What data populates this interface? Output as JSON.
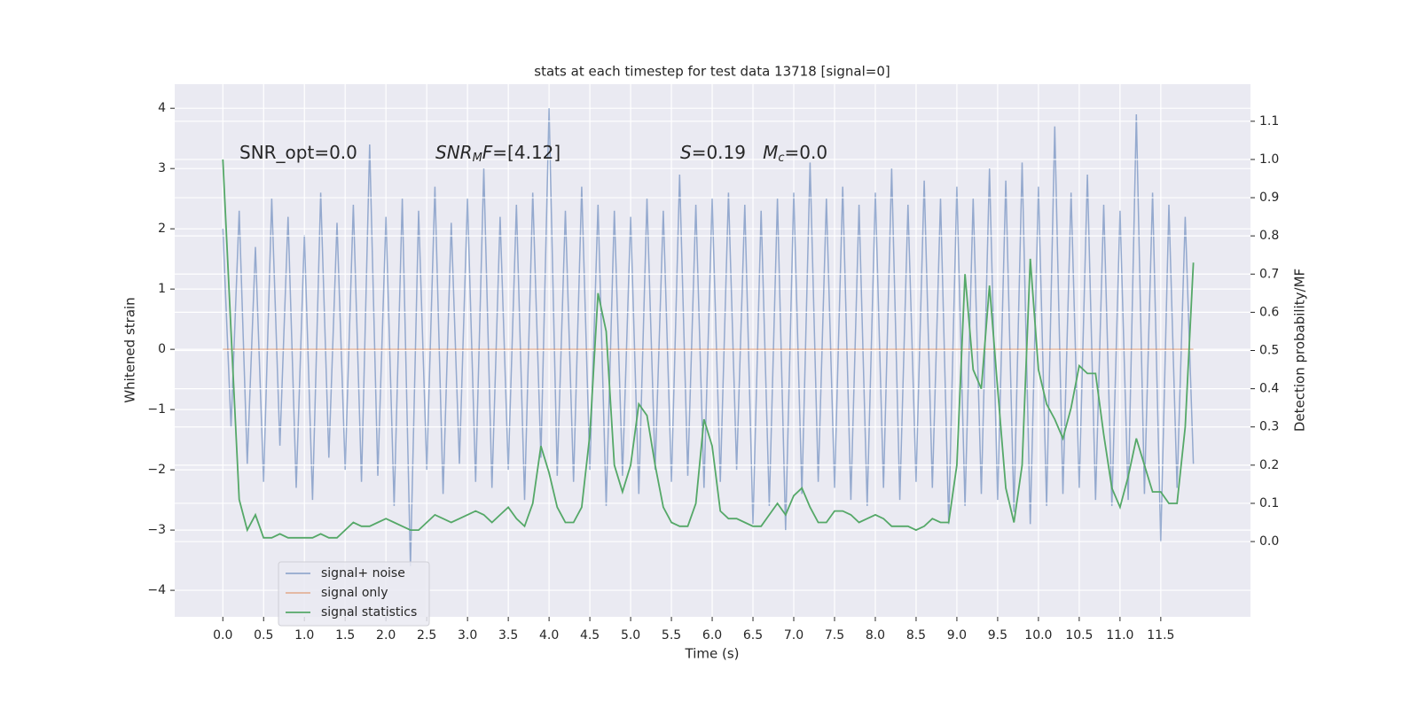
{
  "chart_data": {
    "type": "line",
    "title": "stats at each timestep for test data 13718 [signal=0]",
    "xlabel": "Time (s)",
    "ylabel": "Whitened strain",
    "y2label": "Detection probability/MF",
    "annotations": [
      [
        {
          "t": "SNR_opt=0.0"
        }
      ],
      [
        {
          "t": "SNR",
          "i": true
        },
        {
          "t": "M",
          "sub": true,
          "i": true
        },
        {
          "t": "F",
          "i": true
        },
        {
          "t": "=[4.12]"
        }
      ],
      [
        {
          "t": "S",
          "i": true
        },
        {
          "t": "=0.19   "
        },
        {
          "t": "M",
          "i": true
        },
        {
          "t": "c",
          "sub": true,
          "i": true
        },
        {
          "t": "=0.0"
        }
      ]
    ],
    "x": [
      0.0,
      0.1,
      0.2,
      0.3,
      0.4,
      0.5,
      0.6,
      0.7,
      0.8,
      0.9,
      1.0,
      1.1,
      1.2,
      1.3,
      1.4,
      1.5,
      1.6,
      1.7,
      1.8,
      1.9,
      2.0,
      2.1,
      2.2,
      2.3,
      2.4,
      2.5,
      2.6,
      2.7,
      2.8,
      2.9,
      3.0,
      3.1,
      3.2,
      3.3,
      3.4,
      3.5,
      3.6,
      3.7,
      3.8,
      3.9,
      4.0,
      4.1,
      4.2,
      4.3,
      4.4,
      4.5,
      4.6,
      4.7,
      4.8,
      4.9,
      5.0,
      5.1,
      5.2,
      5.3,
      5.4,
      5.5,
      5.6,
      5.7,
      5.8,
      5.9,
      6.0,
      6.1,
      6.2,
      6.3,
      6.4,
      6.5,
      6.6,
      6.7,
      6.8,
      6.9,
      7.0,
      7.1,
      7.2,
      7.3,
      7.4,
      7.5,
      7.6,
      7.7,
      7.8,
      7.9,
      8.0,
      8.1,
      8.2,
      8.3,
      8.4,
      8.5,
      8.6,
      8.7,
      8.8,
      8.9,
      9.0,
      9.1,
      9.2,
      9.3,
      9.4,
      9.5,
      9.6,
      9.7,
      9.8,
      9.9,
      10.0,
      10.1,
      10.2,
      10.3,
      10.4,
      10.5,
      10.6,
      10.7,
      10.8,
      10.9,
      11.0,
      11.1,
      11.2,
      11.3,
      11.4,
      11.5,
      11.6,
      11.7,
      11.8,
      11.9
    ],
    "series": [
      {
        "name": "signal+ noise",
        "color": "#4c72b0",
        "values": [
          2.0,
          -1.3,
          2.3,
          -1.9,
          1.7,
          -2.2,
          2.5,
          -1.6,
          2.2,
          -2.3,
          1.9,
          -2.5,
          2.6,
          -1.8,
          2.1,
          -2.0,
          2.4,
          -2.2,
          3.4,
          -2.1,
          2.2,
          -2.6,
          2.5,
          -3.6,
          2.3,
          -2.0,
          2.7,
          -2.4,
          2.1,
          -1.9,
          2.5,
          -2.2,
          3.0,
          -2.3,
          2.2,
          -2.0,
          2.4,
          -2.5,
          2.6,
          -1.8,
          4.0,
          -2.1,
          2.3,
          -2.2,
          2.7,
          -2.0,
          2.4,
          -2.6,
          2.3,
          -2.1,
          2.2,
          -2.4,
          2.5,
          -2.0,
          2.3,
          -2.2,
          2.9,
          -2.1,
          2.4,
          -2.3,
          2.5,
          -2.2,
          2.6,
          -2.0,
          2.4,
          -2.9,
          2.3,
          -2.6,
          2.5,
          -3.0,
          2.6,
          -2.4,
          3.1,
          -2.2,
          2.5,
          -2.3,
          2.7,
          -2.5,
          2.4,
          -2.6,
          2.6,
          -2.3,
          3.0,
          -2.5,
          2.4,
          -2.2,
          2.8,
          -2.3,
          2.5,
          -2.9,
          2.7,
          -2.6,
          2.5,
          -2.4,
          3.0,
          -2.5,
          2.8,
          -2.7,
          3.1,
          -2.9,
          2.7,
          -2.6,
          3.7,
          -2.4,
          2.6,
          -2.3,
          2.9,
          -2.5,
          2.4,
          -2.6,
          2.3,
          -2.5,
          3.9,
          -2.4,
          2.6,
          -3.2,
          2.4,
          -2.3,
          2.2,
          -1.9
        ]
      },
      {
        "name": "signal only",
        "color": "#dd8452",
        "values": [
          0,
          0,
          0,
          0,
          0,
          0,
          0,
          0,
          0,
          0,
          0,
          0,
          0,
          0,
          0,
          0,
          0,
          0,
          0,
          0,
          0,
          0,
          0,
          0,
          0,
          0,
          0,
          0,
          0,
          0,
          0,
          0,
          0,
          0,
          0,
          0,
          0,
          0,
          0,
          0,
          0,
          0,
          0,
          0,
          0,
          0,
          0,
          0,
          0,
          0,
          0,
          0,
          0,
          0,
          0,
          0,
          0,
          0,
          0,
          0,
          0,
          0,
          0,
          0,
          0,
          0,
          0,
          0,
          0,
          0,
          0,
          0,
          0,
          0,
          0,
          0,
          0,
          0,
          0,
          0,
          0,
          0,
          0,
          0,
          0,
          0,
          0,
          0,
          0,
          0,
          0,
          0,
          0,
          0,
          0,
          0,
          0,
          0,
          0,
          0,
          0,
          0,
          0,
          0,
          0,
          0,
          0,
          0,
          0,
          0,
          0,
          0,
          0,
          0,
          0,
          0,
          0,
          0,
          0,
          0
        ]
      },
      {
        "name": "signal statistics",
        "color": "#55a868",
        "axis": "y2",
        "values": [
          1.0,
          0.55,
          0.11,
          0.03,
          0.07,
          0.01,
          0.01,
          0.02,
          0.01,
          0.01,
          0.01,
          0.01,
          0.02,
          0.01,
          0.01,
          0.03,
          0.05,
          0.04,
          0.04,
          0.05,
          0.06,
          0.05,
          0.04,
          0.03,
          0.03,
          0.05,
          0.07,
          0.06,
          0.05,
          0.06,
          0.07,
          0.08,
          0.07,
          0.05,
          0.07,
          0.09,
          0.06,
          0.04,
          0.1,
          0.25,
          0.18,
          0.09,
          0.05,
          0.05,
          0.09,
          0.28,
          0.65,
          0.55,
          0.2,
          0.13,
          0.2,
          0.36,
          0.33,
          0.2,
          0.09,
          0.05,
          0.04,
          0.04,
          0.1,
          0.32,
          0.25,
          0.08,
          0.06,
          0.06,
          0.05,
          0.04,
          0.04,
          0.07,
          0.1,
          0.07,
          0.12,
          0.14,
          0.09,
          0.05,
          0.05,
          0.08,
          0.08,
          0.07,
          0.05,
          0.06,
          0.07,
          0.06,
          0.04,
          0.04,
          0.04,
          0.03,
          0.04,
          0.06,
          0.05,
          0.05,
          0.2,
          0.7,
          0.45,
          0.4,
          0.67,
          0.4,
          0.14,
          0.05,
          0.2,
          0.74,
          0.45,
          0.36,
          0.32,
          0.27,
          0.35,
          0.46,
          0.44,
          0.44,
          0.28,
          0.14,
          0.09,
          0.17,
          0.27,
          0.2,
          0.13,
          0.13,
          0.1,
          0.1,
          0.3,
          0.73
        ]
      }
    ],
    "xlim": [
      -0.59,
      12.6
    ],
    "ylim": [
      -4.44,
      4.4
    ],
    "y2lim": [
      -0.197,
      1.197
    ],
    "xticks": [
      {
        "value": 0,
        "label": "0.0"
      },
      0.5,
      {
        "value": 1,
        "label": "1.0"
      },
      1.5,
      {
        "value": 2,
        "label": "2.0"
      },
      2.5,
      {
        "value": 3,
        "label": "3.0"
      },
      3.5,
      {
        "value": 4,
        "label": "4.0"
      },
      4.5,
      {
        "value": 5,
        "label": "5.0"
      },
      5.5,
      {
        "value": 6,
        "label": "6.0"
      },
      6.5,
      {
        "value": 7,
        "label": "7.0"
      },
      7.5,
      {
        "value": 8,
        "label": "8.0"
      },
      8.5,
      {
        "value": 9,
        "label": "9.0"
      },
      9.5,
      {
        "value": 10,
        "label": "10.0"
      },
      10.5,
      {
        "value": 11,
        "label": "11.0"
      },
      11.5
    ],
    "yticks": [
      {
        "value": -4,
        "label": "−4"
      },
      {
        "value": -3,
        "label": "−3"
      },
      {
        "value": -2,
        "label": "−2"
      },
      {
        "value": -1,
        "label": "−1"
      },
      0,
      1,
      2,
      3,
      4
    ],
    "y2ticks": [
      {
        "value": 0,
        "label": "0.0"
      },
      0.1,
      0.2,
      0.3,
      0.4,
      0.5,
      0.6,
      0.7,
      0.8,
      0.9,
      {
        "value": 1,
        "label": "1.0"
      },
      1.1
    ],
    "grid": true,
    "legend": "lower left"
  }
}
